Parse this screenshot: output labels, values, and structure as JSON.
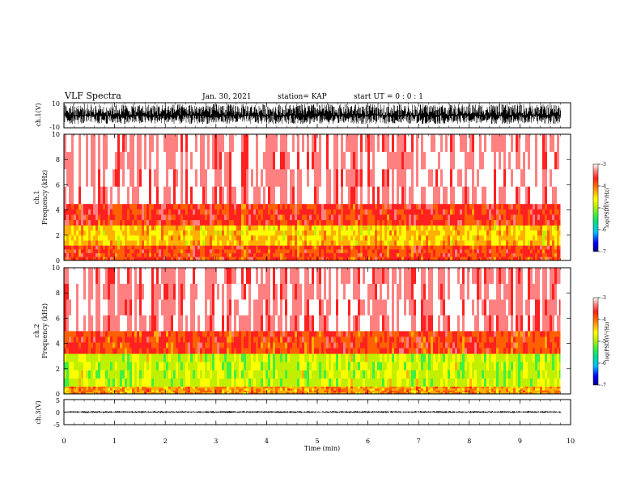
{
  "header": {
    "title": "VLF Spectra",
    "date": "Jan. 30, 2021",
    "station": "station= KAP",
    "start": "start  UT =   0 : 0  : 1"
  },
  "colorbar_label": "log(PSD)(V²/Hz)",
  "colormap": [
    "#000080",
    "#0000ff",
    "#00c0ff",
    "#00e080",
    "#40f040",
    "#c0f000",
    "#ffff00",
    "#ffb000",
    "#ff6000",
    "#ff2020",
    "#ff8080",
    "#ffffff"
  ],
  "chart_data": [
    {
      "type": "line",
      "name": "channel-1-waveform",
      "ylabel": "ch.1(V)",
      "ylim": [
        -10,
        10
      ],
      "y_ticks": [
        "10",
        "-10"
      ],
      "xlim": [
        0,
        10
      ],
      "amplitude_envelope": [
        -10,
        10
      ]
    },
    {
      "type": "heatmap",
      "name": "channel-1-spectrogram",
      "ylabel_top": "ch.1",
      "ylabel": "Frequency (kHz)",
      "ylim": [
        0,
        10
      ],
      "y_ticks": [
        "0",
        "2",
        "4",
        "6",
        "8",
        "10"
      ],
      "xlim": [
        0,
        10
      ],
      "data_end_min": 9.8,
      "colorbar": {
        "range": [
          -7,
          -3
        ],
        "ticks": [
          "-3",
          "-4",
          "-5",
          "-6",
          "-7"
        ]
      },
      "bands": [
        {
          "freq_kHz": [
            0,
            1.2
          ],
          "log_psd": -3.9
        },
        {
          "freq_kHz": [
            1.2,
            2.8
          ],
          "log_psd": -4.6
        },
        {
          "freq_kHz": [
            2.8,
            4.5
          ],
          "log_psd": -3.8
        },
        {
          "freq_kHz": [
            4.5,
            10
          ],
          "log_psd": -3.2
        }
      ]
    },
    {
      "type": "heatmap",
      "name": "channel-2-spectrogram",
      "ylabel_top": "ch.2",
      "ylabel": "Frequency (kHz)",
      "ylim": [
        0,
        10
      ],
      "y_ticks": [
        "0",
        "2",
        "4",
        "6",
        "8",
        "10"
      ],
      "xlim": [
        0,
        10
      ],
      "data_end_min": 9.8,
      "colorbar": {
        "range": [
          -7,
          -3
        ],
        "ticks": [
          "-3",
          "-4",
          "-5",
          "-6",
          "-7"
        ]
      },
      "bands": [
        {
          "freq_kHz": [
            0,
            0.6
          ],
          "log_psd": -4.3
        },
        {
          "freq_kHz": [
            0.6,
            3.2
          ],
          "log_psd": -5.1
        },
        {
          "freq_kHz": [
            3.2,
            5.0
          ],
          "log_psd": -3.9
        },
        {
          "freq_kHz": [
            5.0,
            10
          ],
          "log_psd": -3.2
        }
      ]
    },
    {
      "type": "line",
      "name": "channel-3-waveform",
      "ylabel": "ch.3(V)",
      "ylim": [
        -5,
        5
      ],
      "y_ticks": [
        "5",
        "0",
        "-5"
      ],
      "xlim": [
        0,
        10
      ],
      "amplitude_envelope": [
        -0.5,
        0.5
      ]
    }
  ],
  "x_axis": {
    "label": "Time  (min)",
    "ticks": [
      "0",
      "1",
      "2",
      "3",
      "4",
      "5",
      "6",
      "7",
      "8",
      "9",
      "10"
    ]
  }
}
